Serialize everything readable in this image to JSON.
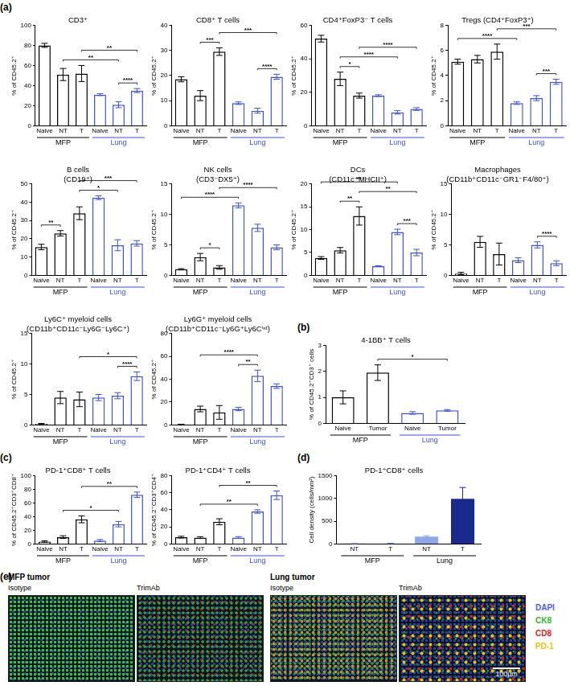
{
  "chart_data": [
    {
      "panel": "(a)",
      "type": "bar",
      "marker": "hollow",
      "title": [
        "CD3⁺"
      ],
      "y_label": "% of CD45.2⁺",
      "categories": [
        "Naive",
        "NT",
        "T",
        "Naive",
        "NT",
        "T"
      ],
      "groups": [
        "MFP",
        "MFP",
        "MFP",
        "Lung",
        "Lung",
        "Lung"
      ],
      "values": [
        80,
        51,
        52,
        31,
        21,
        35
      ],
      "errors": [
        2,
        6,
        8,
        1,
        3,
        2
      ],
      "colors": [
        "#000000",
        "#000000",
        "#000000",
        "#3f51d8",
        "#3f51d8",
        "#3f51d8"
      ],
      "significance": [
        {
          "from": 1,
          "to": 4,
          "label": "**"
        },
        {
          "from": 2,
          "to": 5,
          "label": "**"
        },
        {
          "from": 4,
          "to": 5,
          "label": "****"
        }
      ],
      "ylim": [
        0,
        100
      ],
      "yticks": [
        0,
        20,
        40,
        60,
        80,
        100
      ],
      "grid": false
    },
    {
      "type": "bar",
      "marker": "hollow",
      "title": [
        "CD8⁺ T cells"
      ],
      "y_label": "% of CD45.2⁺",
      "categories": [
        "Naive",
        "NT",
        "T",
        "Naive",
        "NT",
        "T"
      ],
      "groups": [
        "MFP",
        "MFP",
        "MFP",
        "Lung",
        "Lung",
        "Lung"
      ],
      "values": [
        18.5,
        12,
        29.5,
        9,
        6,
        19.5
      ],
      "errors": [
        1,
        2,
        1.5,
        0.5,
        1,
        1
      ],
      "colors": [
        "#000000",
        "#000000",
        "#000000",
        "#3f51d8",
        "#3f51d8",
        "#3f51d8"
      ],
      "significance": [
        {
          "from": 1,
          "to": 2,
          "label": "***"
        },
        {
          "from": 2,
          "to": 5,
          "label": "***"
        },
        {
          "from": 4,
          "to": 5,
          "label": "****"
        }
      ],
      "ylim": [
        0,
        40
      ],
      "yticks": [
        0,
        10,
        20,
        30,
        40
      ],
      "grid": false
    },
    {
      "type": "bar",
      "marker": "hollow",
      "title": [
        "CD4⁺FoxP3⁻ T cells"
      ],
      "y_label": "% of CD45.2⁺",
      "categories": [
        "Naive",
        "NT",
        "T",
        "Naive",
        "NT",
        "T"
      ],
      "groups": [
        "MFP",
        "MFP",
        "MFP",
        "Lung",
        "Lung",
        "Lung"
      ],
      "values": [
        52,
        28,
        18,
        18,
        8,
        10
      ],
      "errors": [
        2,
        4,
        1.5,
        0.5,
        1,
        0.8
      ],
      "colors": [
        "#000000",
        "#000000",
        "#000000",
        "#3f51d8",
        "#3f51d8",
        "#3f51d8"
      ],
      "significance": [
        {
          "from": 1,
          "to": 2,
          "label": "*"
        },
        {
          "from": 1,
          "to": 4,
          "label": "****"
        },
        {
          "from": 2,
          "to": 5,
          "label": "****"
        }
      ],
      "ylim": [
        0,
        60
      ],
      "yticks": [
        0,
        20,
        40,
        60
      ],
      "grid": false
    },
    {
      "type": "bar",
      "marker": "hollow",
      "title": [
        "Tregs (CD4⁺FoxP3⁺)"
      ],
      "y_label": "% of CD45.2⁺",
      "categories": [
        "Naive",
        "NT",
        "T",
        "Naive",
        "NT",
        "T"
      ],
      "groups": [
        "MFP",
        "MFP",
        "MFP",
        "Lung",
        "Lung",
        "Lung"
      ],
      "values": [
        5.1,
        5.3,
        5.9,
        1.8,
        2.2,
        3.5
      ],
      "errors": [
        0.2,
        0.3,
        0.6,
        0.1,
        0.2,
        0.2
      ],
      "colors": [
        "#000000",
        "#000000",
        "#000000",
        "#3f51d8",
        "#3f51d8",
        "#3f51d8"
      ],
      "significance": [
        {
          "from": 0,
          "to": 3,
          "label": "****"
        },
        {
          "from": 2,
          "to": 5,
          "label": "***"
        },
        {
          "from": 4,
          "to": 5,
          "label": "***"
        }
      ],
      "ylim": [
        0,
        8
      ],
      "yticks": [
        0,
        2,
        4,
        6,
        8
      ],
      "grid": false
    },
    {
      "type": "bar",
      "marker": "hollow",
      "title": [
        "B cells",
        "(CD19⁺)"
      ],
      "y_label": "% of CD45.2⁺",
      "categories": [
        "Naive",
        "NT",
        "T",
        "Naive",
        "NT",
        "T"
      ],
      "groups": [
        "MFP",
        "MFP",
        "MFP",
        "Lung",
        "Lung",
        "Lung"
      ],
      "values": [
        15.5,
        23,
        34,
        42.5,
        16.5,
        17.5
      ],
      "errors": [
        1.5,
        1.5,
        3.5,
        1,
        3,
        1.5
      ],
      "colors": [
        "#000000",
        "#000000",
        "#000000",
        "#3f51d8",
        "#3f51d8",
        "#3f51d8"
      ],
      "significance": [
        {
          "from": 0,
          "to": 1,
          "label": "**"
        },
        {
          "from": 2,
          "to": 4,
          "label": "*"
        },
        {
          "from": 2,
          "to": 5,
          "label": "***"
        }
      ],
      "ylim": [
        0,
        50
      ],
      "yticks": [
        0,
        10,
        20,
        30,
        40,
        50
      ],
      "grid": false
    },
    {
      "type": "bar",
      "marker": "hollow",
      "title": [
        "NK cells",
        "(CD3⁻DX5⁺)"
      ],
      "y_label": "% of CD45.2⁺",
      "categories": [
        "Naive",
        "NT",
        "T",
        "Naive",
        "NT",
        "T"
      ],
      "groups": [
        "MFP",
        "MFP",
        "MFP",
        "Lung",
        "Lung",
        "Lung"
      ],
      "values": [
        1,
        3,
        1.3,
        11.5,
        7.8,
        4.6
      ],
      "errors": [
        0.1,
        0.6,
        0.3,
        0.4,
        0.6,
        0.4
      ],
      "colors": [
        "#000000",
        "#000000",
        "#000000",
        "#3f51d8",
        "#3f51d8",
        "#3f51d8"
      ],
      "significance": [
        {
          "from": 1,
          "to": 2,
          "label": "*"
        },
        {
          "from": 0,
          "to": 3,
          "label": "****"
        },
        {
          "from": 2,
          "to": 5,
          "label": "****"
        }
      ],
      "ylim": [
        0,
        15
      ],
      "yticks": [
        0,
        5,
        10,
        15
      ],
      "grid": false
    },
    {
      "type": "bar",
      "marker": "hollow",
      "title": [
        "DCs",
        "(CD11c⁺MHCII⁺)"
      ],
      "y_label": "% of CD45.2⁺",
      "categories": [
        "Naive",
        "NT",
        "T",
        "Naive",
        "NT",
        "T"
      ],
      "groups": [
        "MFP",
        "MFP",
        "MFP",
        "Lung",
        "Lung",
        "Lung"
      ],
      "values": [
        3.8,
        5.5,
        13,
        2,
        9.5,
        5
      ],
      "errors": [
        0.3,
        0.6,
        2,
        0.1,
        0.6,
        0.7
      ],
      "colors": [
        "#000000",
        "#000000",
        "#000000",
        "#3f51d8",
        "#3f51d8",
        "#3f51d8"
      ],
      "significance": [
        {
          "from": 1,
          "to": 2,
          "label": "**"
        },
        {
          "from": 4,
          "to": 5,
          "label": "***"
        },
        {
          "from": 0,
          "to": 4,
          "label": "**"
        },
        {
          "from": 2,
          "to": 5,
          "label": "**"
        }
      ],
      "ylim": [
        0,
        20
      ],
      "yticks": [
        0,
        5,
        10,
        15,
        20
      ],
      "grid": false
    },
    {
      "type": "bar",
      "marker": "hollow",
      "title": [
        "Macrophages",
        "(CD11b⁺CD11c⁻GR1⁻F4/80⁺)"
      ],
      "y_label": "% of CD45.2⁺",
      "categories": [
        "Naive",
        "NT",
        "T",
        "Naive",
        "NT",
        "T"
      ],
      "groups": [
        "MFP",
        "MFP",
        "MFP",
        "Lung",
        "Lung",
        "Lung"
      ],
      "values": [
        0.3,
        5.5,
        3.5,
        2.5,
        5,
        2
      ],
      "errors": [
        0.2,
        0.9,
        1.8,
        0.4,
        0.5,
        0.4
      ],
      "colors": [
        "#000000",
        "#000000",
        "#000000",
        "#3f51d8",
        "#3f51d8",
        "#3f51d8"
      ],
      "significance": [
        {
          "from": 4,
          "to": 5,
          "label": "****"
        }
      ],
      "ylim": [
        0,
        15
      ],
      "yticks": [
        0,
        5,
        10,
        15
      ],
      "grid": false
    },
    {
      "type": "bar",
      "marker": "hollow",
      "title": [
        "Ly6C⁺ myeloid cells",
        "(CD11b⁺CD11c⁻Ly6G⁻Ly6C⁺)"
      ],
      "y_label": "% of CD45.2⁺",
      "categories": [
        "Naive",
        "NT",
        "T",
        "Naive",
        "NT",
        "T"
      ],
      "groups": [
        "MFP",
        "MFP",
        "MFP",
        "Lung",
        "Lung",
        "Lung"
      ],
      "values": [
        0.2,
        4.5,
        4.2,
        4.5,
        4.8,
        8
      ],
      "errors": [
        0.05,
        1,
        1.2,
        0.5,
        0.5,
        0.7
      ],
      "colors": [
        "#000000",
        "#000000",
        "#000000",
        "#3f51d8",
        "#3f51d8",
        "#3f51d8"
      ],
      "significance": [
        {
          "from": 4,
          "to": 5,
          "label": "****"
        },
        {
          "from": 2,
          "to": 5,
          "label": "*"
        }
      ],
      "ylim": [
        0,
        15
      ],
      "yticks": [
        0,
        5,
        10,
        15
      ],
      "grid": false
    },
    {
      "type": "bar",
      "marker": "hollow",
      "title": [
        "Ly6G⁺ myeloid cells",
        "(CD11b⁺CD11c⁻Ly6G⁺Ly6Cⁱⁿᵗ)"
      ],
      "y_label": "% of CD45.2⁺",
      "categories": [
        "Naive",
        "NT",
        "T",
        "Naive",
        "NT",
        "T"
      ],
      "groups": [
        "MFP",
        "MFP",
        "MFP",
        "Lung",
        "Lung",
        "Lung"
      ],
      "values": [
        0.5,
        14,
        11,
        14,
        43,
        34
      ],
      "errors": [
        0.1,
        2.5,
        6,
        1.5,
        5,
        2
      ],
      "colors": [
        "#000000",
        "#000000",
        "#000000",
        "#3f51d8",
        "#3f51d8",
        "#3f51d8"
      ],
      "significance": [
        {
          "from": 3,
          "to": 4,
          "label": "**"
        },
        {
          "from": 1,
          "to": 4,
          "label": "****"
        }
      ],
      "ylim": [
        0,
        80
      ],
      "yticks": [
        0,
        20,
        40,
        60,
        80
      ],
      "grid": false
    },
    {
      "panel": "(b)",
      "type": "bar",
      "marker": "hollow",
      "title": [
        "4-1BB⁺ T cells"
      ],
      "y_label": "% of CD45.2⁺CD3⁺ cells",
      "categories": [
        "Naive",
        "Tumor",
        "Naive",
        "Tumor"
      ],
      "groups": [
        "MFP",
        "MFP",
        "Lung",
        "Lung"
      ],
      "values": [
        1.0,
        1.95,
        0.4,
        0.5
      ],
      "errors": [
        0.25,
        0.3,
        0.05,
        0.03
      ],
      "colors": [
        "#000000",
        "#000000",
        "#3f51d8",
        "#3f51d8"
      ],
      "significance": [
        {
          "from": 1,
          "to": 3,
          "label": "*"
        }
      ],
      "ylim": [
        0,
        3
      ],
      "yticks": [
        0,
        1,
        2,
        3
      ],
      "grid": false
    },
    {
      "panel": "(c)",
      "type": "bar",
      "marker": "hollow",
      "title": [
        "PD-1⁺CD8⁺ T cells"
      ],
      "y_label": "% of CD45.2⁺CD3⁺CD8⁺",
      "categories": [
        "Naive",
        "NT",
        "T",
        "Naive",
        "NT",
        "T"
      ],
      "groups": [
        "MFP",
        "MFP",
        "MFP",
        "Lung",
        "Lung",
        "Lung"
      ],
      "values": [
        3.5,
        10,
        36,
        5,
        29,
        72
      ],
      "errors": [
        1,
        2,
        5,
        1.5,
        4,
        4
      ],
      "colors": [
        "#000000",
        "#000000",
        "#000000",
        "#3f51d8",
        "#3f51d8",
        "#3f51d8"
      ],
      "significance": [
        {
          "from": 1,
          "to": 4,
          "label": "*"
        },
        {
          "from": 2,
          "to": 5,
          "label": "**"
        }
      ],
      "ylim": [
        0,
        100
      ],
      "yticks": [
        0,
        20,
        40,
        60,
        80,
        100
      ],
      "grid": false
    },
    {
      "type": "bar",
      "marker": "hollow",
      "title": [
        "PD-1⁺CD4⁺ T cells"
      ],
      "y_label": "% of CD45.2⁺CD3⁺CD4⁺",
      "categories": [
        "Naive",
        "NT",
        "T",
        "Naive",
        "NT",
        "T"
      ],
      "groups": [
        "MFP",
        "MFP",
        "MFP",
        "Lung",
        "Lung",
        "Lung"
      ],
      "values": [
        8,
        7.5,
        26,
        7.5,
        38,
        57
      ],
      "errors": [
        1,
        1,
        3.5,
        1,
        2,
        5
      ],
      "colors": [
        "#000000",
        "#000000",
        "#000000",
        "#3f51d8",
        "#3f51d8",
        "#3f51d8"
      ],
      "significance": [
        {
          "from": 1,
          "to": 4,
          "label": "**"
        },
        {
          "from": 2,
          "to": 5,
          "label": "**"
        }
      ],
      "ylim": [
        0,
        80
      ],
      "yticks": [
        0,
        20,
        40,
        60,
        80
      ],
      "grid": false
    },
    {
      "panel": "(d)",
      "type": "bar",
      "marker": "filled",
      "title": [
        "PD-1⁺CD8⁺ cells"
      ],
      "y_label": "Cell density (cells/mm²)",
      "categories": [
        "NT",
        "T",
        "NT",
        "T"
      ],
      "groups": [
        "MFP",
        "MFP",
        "Lung",
        "Lung"
      ],
      "values": [
        10,
        5,
        160,
        990
      ],
      "errors": [
        5,
        3,
        20,
        250
      ],
      "colors": [
        "#8fa8e8",
        "#1a2a8c",
        "#8fa8e8",
        "#1a2a8c"
      ],
      "significance": [],
      "ylim": [
        0,
        1500
      ],
      "yticks": [
        0,
        500,
        1000,
        1500
      ],
      "grid": false
    }
  ],
  "image_panel": {
    "panel": "(e)",
    "groups": [
      {
        "title": "MFP tumor",
        "images": [
          "Isotype",
          "TrimAb"
        ]
      },
      {
        "title": "Lung tumor",
        "images": [
          "Isotype",
          "TrimAb"
        ]
      }
    ],
    "channels": [
      {
        "name": "DAPI",
        "color": "#4a5cff"
      },
      {
        "name": "CK8",
        "color": "#2eb82e"
      },
      {
        "name": "CD8",
        "color": "#e02020"
      },
      {
        "name": "PD-1",
        "color": "#e6c700"
      }
    ],
    "scale_bar": "100µm"
  }
}
